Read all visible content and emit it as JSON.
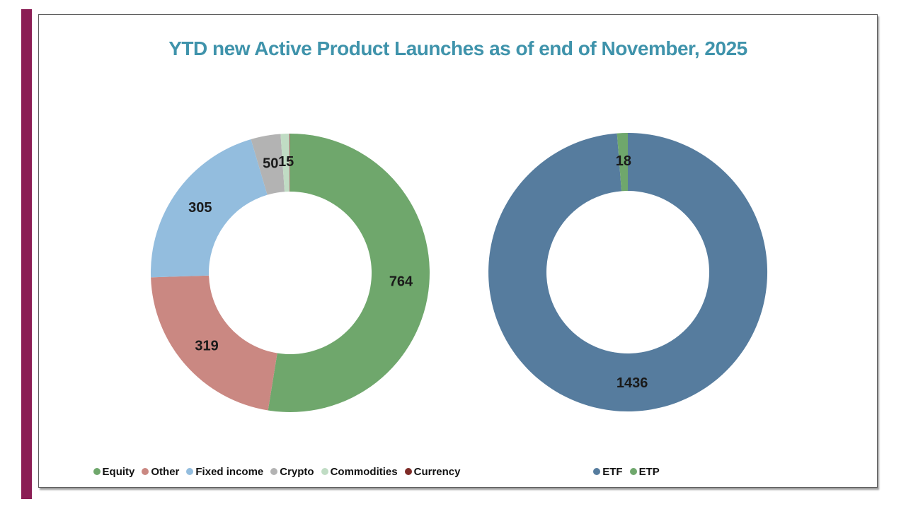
{
  "page": {
    "background": "#ffffff",
    "accent_bar_color": "#8B1E55",
    "slide_border_color": "#5f5f5f"
  },
  "title": {
    "text": "YTD new Active Product Launches as of end of November, 2025",
    "color": "#3F93AB"
  },
  "chart_data": [
    {
      "name": "launches-by-asset-class",
      "type": "pie",
      "subtype": "donut",
      "direction": "clockwise",
      "start_angle_deg": 0,
      "hole_ratio": 0.58,
      "legend_position": "bottom",
      "data_label_color": "#1a1a1a",
      "categories": [
        "Equity",
        "Other",
        "Fixed income",
        "Crypto",
        "Commodities",
        "Currency"
      ],
      "values": [
        764,
        319,
        305,
        50,
        15,
        1
      ],
      "colors": [
        "#6FA76C",
        "#CA8882",
        "#93BDDE",
        "#B3B3B3",
        "#C0DCC4",
        "#7E2B27"
      ],
      "data_labels": [
        "764",
        "319",
        "305",
        "50",
        "15",
        ""
      ]
    },
    {
      "name": "launches-by-wrapper",
      "type": "pie",
      "subtype": "donut",
      "direction": "clockwise",
      "start_angle_deg": 0,
      "hole_ratio": 0.58,
      "legend_position": "bottom",
      "data_label_color": "#1a1a1a",
      "categories": [
        "ETF",
        "ETP"
      ],
      "values": [
        1436,
        18
      ],
      "colors": [
        "#567C9E",
        "#6FA76C"
      ],
      "data_labels": [
        "1436",
        "18"
      ]
    }
  ]
}
